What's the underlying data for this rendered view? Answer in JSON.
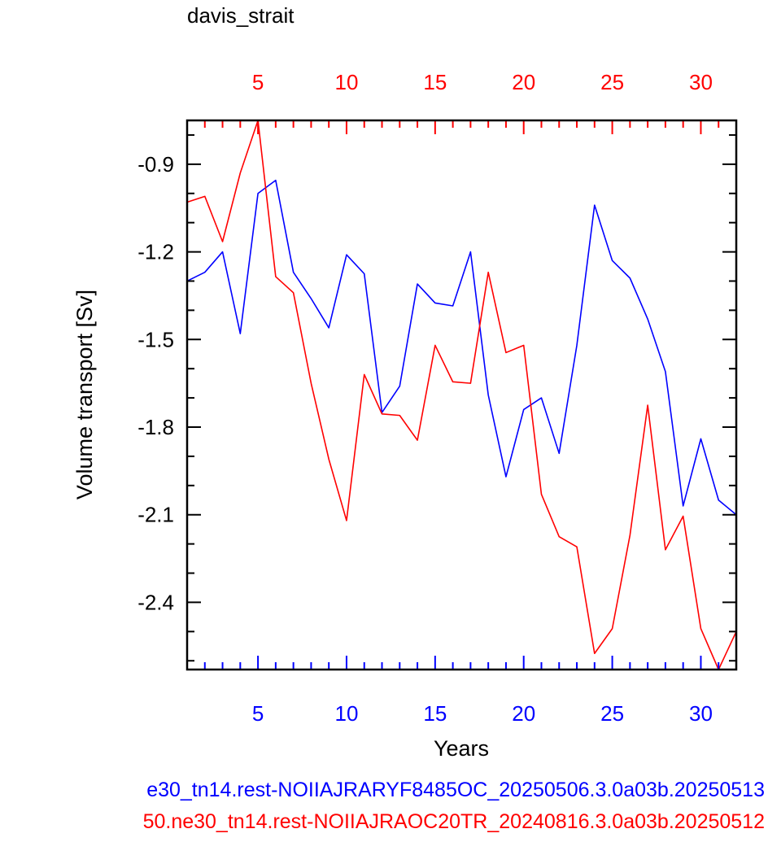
{
  "chart_data": {
    "type": "line",
    "title": "davis_strait",
    "xlabel": "Years",
    "ylabel": "Volume transport [Sv]",
    "xlim": [
      1,
      32
    ],
    "ylim": [
      -2.63,
      -0.75
    ],
    "x_ticks": [
      5,
      10,
      15,
      20,
      25,
      30
    ],
    "y_ticks": [
      -0.9,
      -1.2,
      -1.5,
      -1.8,
      -2.1,
      -2.4
    ],
    "y_minor_step": 0.1,
    "grid": false,
    "bottom_axis_color": "#0000ff",
    "top_axis_color": "#ff0000",
    "x": [
      1,
      2,
      3,
      4,
      5,
      6,
      7,
      8,
      9,
      10,
      11,
      12,
      13,
      14,
      15,
      16,
      17,
      18,
      19,
      20,
      21,
      22,
      23,
      24,
      25,
      26,
      27,
      28,
      29,
      30,
      31,
      32
    ],
    "series": [
      {
        "name": "e30_tn14.rest-NOIIAJRARYF8485OC_20250506.3.0a03b.20250513",
        "color": "#0000ff",
        "values": [
          -1.3,
          -1.27,
          -1.2,
          -1.48,
          -1.0,
          -0.955,
          -1.27,
          -1.36,
          -1.46,
          -1.21,
          -1.275,
          -1.75,
          -1.66,
          -1.31,
          -1.375,
          -1.385,
          -1.2,
          -1.69,
          -1.97,
          -1.74,
          -1.7,
          -1.89,
          -1.52,
          -1.04,
          -1.23,
          -1.29,
          -1.43,
          -1.61,
          -2.07,
          -1.84,
          -2.05,
          -2.1
        ]
      },
      {
        "name": "50.ne30_tn14.rest-NOIIAJRAOC20TR_20240816.3.0a03b.20250512",
        "color": "#ff0000",
        "values": [
          -1.03,
          -1.01,
          -1.165,
          -0.93,
          -0.75,
          -1.285,
          -1.34,
          -1.65,
          -1.91,
          -2.12,
          -1.62,
          -1.755,
          -1.76,
          -1.845,
          -1.52,
          -1.645,
          -1.65,
          -1.27,
          -1.545,
          -1.52,
          -2.03,
          -2.175,
          -2.21,
          -2.575,
          -2.49,
          -2.17,
          -1.725,
          -2.22,
          -2.105,
          -2.49,
          -2.63,
          -2.5
        ]
      }
    ]
  }
}
